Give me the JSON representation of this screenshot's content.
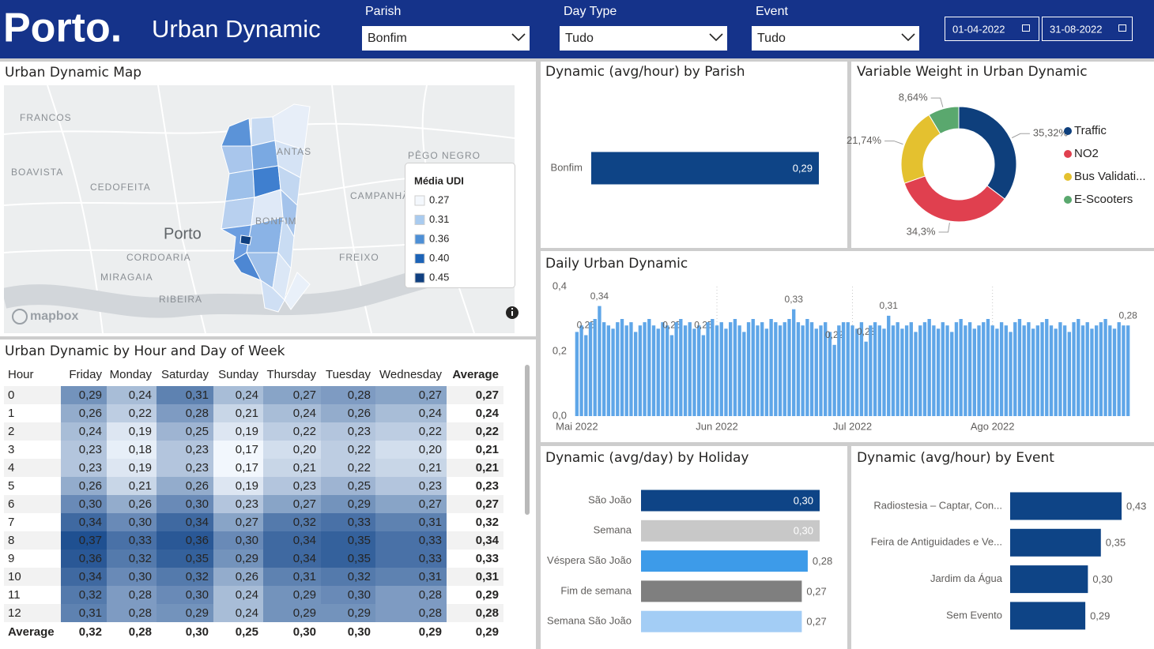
{
  "header": {
    "logo": "Porto.",
    "title": "Urban Dynamic"
  },
  "filters": [
    {
      "label": "Parish",
      "value": "Bonfim"
    },
    {
      "label": "Day Type",
      "value": "Tudo"
    },
    {
      "label": "Event",
      "value": "Tudo"
    }
  ],
  "date_range": {
    "start": "01-04-2022",
    "end": "31-08-2022"
  },
  "map": {
    "title": "Urban Dynamic Map",
    "places": [
      "FRANCOS",
      "BOAVISTA",
      "CEDOFEITA",
      "Porto",
      "CORDOARIA",
      "MIRAGAIA",
      "RIBEIRA",
      "ANTAS",
      "BONFIM",
      "PÊGO NEGRO",
      "CAMPANHÃ",
      "FREIXO"
    ],
    "legend_title": "Média UDI",
    "legend_items": [
      "0.27",
      "0.31",
      "0.36",
      "0.40",
      "0.45"
    ],
    "legend_colors": [
      "#f4f8fd",
      "#a9cbef",
      "#4d8fd6",
      "#1c63b7",
      "#0f3f80"
    ],
    "attribution": "mapbox"
  },
  "chart_data": [
    {
      "type": "bar",
      "orientation": "horizontal",
      "title": "Dynamic (avg/hour) by Parish",
      "categories": [
        "Bonfim"
      ],
      "values": [
        0.29
      ],
      "value_labels": [
        "0,29"
      ],
      "color": "#0e4486"
    },
    {
      "type": "donut",
      "title": "Variable Weight in Urban Dynamic",
      "categories": [
        "Traffic",
        "NO2",
        "Bus Validati...",
        "E-Scooters"
      ],
      "values": [
        35.32,
        34.3,
        21.74,
        8.64
      ],
      "value_labels": [
        "35,32%",
        "34,3%",
        "21,74%",
        "8,64%"
      ],
      "colors": [
        "#0e3f7c",
        "#e0404f",
        "#e4c12f",
        "#5aa86e"
      ]
    },
    {
      "type": "bar",
      "orientation": "vertical",
      "title": "Daily Urban Dynamic",
      "categories": [
        "Mai 2022",
        null,
        null,
        null,
        null,
        null,
        null,
        null,
        null,
        null,
        null,
        null,
        null,
        null,
        null,
        null,
        null,
        null,
        null,
        null,
        null,
        null,
        null,
        null,
        null,
        null,
        null,
        null,
        null,
        null,
        null,
        "Jun 2022",
        null,
        null,
        null,
        null,
        null,
        null,
        null,
        null,
        null,
        null,
        null,
        null,
        null,
        null,
        null,
        null,
        null,
        null,
        null,
        null,
        null,
        null,
        null,
        null,
        null,
        null,
        null,
        null,
        null,
        "Jul 2022",
        null,
        null,
        null,
        null,
        null,
        null,
        null,
        null,
        null,
        null,
        null,
        null,
        null,
        null,
        null,
        null,
        null,
        null,
        null,
        null,
        null,
        null,
        null,
        null,
        null,
        null,
        null,
        null,
        null,
        null,
        "Ago 2022",
        null,
        null,
        null,
        null,
        null,
        null,
        null,
        null,
        null,
        null,
        null,
        null,
        null,
        null,
        null,
        null,
        null,
        null,
        null,
        null,
        null,
        null,
        null,
        null,
        null,
        null,
        null,
        null,
        null,
        null
      ],
      "values": [
        0.26,
        0.28,
        0.25,
        0.29,
        0.3,
        0.34,
        0.29,
        0.28,
        0.27,
        0.29,
        0.3,
        0.28,
        0.29,
        0.26,
        0.28,
        0.29,
        0.3,
        0.28,
        0.27,
        0.29,
        0.28,
        0.25,
        0.29,
        0.3,
        0.28,
        0.29,
        0.27,
        0.28,
        0.25,
        0.29,
        0.3,
        0.28,
        0.29,
        0.27,
        0.29,
        0.3,
        0.28,
        0.26,
        0.29,
        0.3,
        0.28,
        0.29,
        0.27,
        0.3,
        0.29,
        0.28,
        0.29,
        0.3,
        0.33,
        0.29,
        0.28,
        0.3,
        0.29,
        0.27,
        0.28,
        0.29,
        0.26,
        0.22,
        0.28,
        0.29,
        0.29,
        0.28,
        0.27,
        0.29,
        0.23,
        0.28,
        0.29,
        0.28,
        0.27,
        0.31,
        0.28,
        0.29,
        0.27,
        0.28,
        0.29,
        0.26,
        0.28,
        0.29,
        0.3,
        0.28,
        0.27,
        0.29,
        0.28,
        0.26,
        0.29,
        0.3,
        0.28,
        0.29,
        0.27,
        0.28,
        0.29,
        0.3,
        0.28,
        0.27,
        0.29,
        0.28,
        0.26,
        0.29,
        0.3,
        0.28,
        0.29,
        0.27,
        0.28,
        0.29,
        0.3,
        0.28,
        0.27,
        0.29,
        0.28,
        0.26,
        0.29,
        0.3,
        0.28,
        0.29,
        0.27,
        0.28,
        0.29,
        0.3,
        0.28,
        0.27,
        0.29,
        0.28,
        0.28
      ],
      "value_labels": [
        null,
        null,
        "0,25",
        null,
        null,
        "0,34",
        null,
        null,
        null,
        null,
        null,
        null,
        null,
        null,
        null,
        null,
        null,
        null,
        null,
        null,
        null,
        "0,25",
        null,
        null,
        null,
        null,
        null,
        null,
        "0,25",
        null,
        null,
        null,
        null,
        null,
        null,
        null,
        null,
        null,
        null,
        null,
        null,
        null,
        null,
        null,
        null,
        null,
        null,
        null,
        "0,33",
        null,
        null,
        null,
        null,
        null,
        null,
        null,
        null,
        "0,22",
        null,
        null,
        null,
        null,
        null,
        null,
        "0,23",
        null,
        null,
        null,
        null,
        "0,31",
        null,
        null,
        null,
        null,
        null,
        null,
        null,
        null,
        null,
        null,
        null,
        null,
        null,
        null,
        null,
        null,
        null,
        null,
        null,
        null,
        null,
        null,
        null,
        null,
        null,
        null,
        null,
        null,
        null,
        null,
        null,
        null,
        null,
        null,
        null,
        null,
        null,
        null,
        null,
        null,
        null,
        null,
        null,
        null,
        null,
        null,
        null,
        null,
        null,
        null,
        null,
        null,
        "0,28"
      ],
      "color": "#5fa6e8",
      "ylim": [
        0,
        0.4
      ],
      "yticks": [
        {
          "value": 0,
          "label": "0,0"
        },
        {
          "value": 0.2,
          "label": "0,2"
        },
        {
          "value": 0.4,
          "label": "0,4"
        }
      ]
    },
    {
      "type": "bar",
      "orientation": "horizontal",
      "title": "Dynamic (avg/day) by Holiday",
      "categories": [
        "São João",
        "Semana",
        "Véspera São João",
        "Fim de semana",
        "Semana São João"
      ],
      "values": [
        0.3,
        0.3,
        0.28,
        0.27,
        0.27
      ],
      "value_labels": [
        "0,30",
        "0,30",
        "0,28",
        "0,27",
        "0,27"
      ],
      "colors": [
        "#0e4486",
        "#c8c8c8",
        "#3d9be9",
        "#7f7f7f",
        "#a3cdf5"
      ]
    },
    {
      "type": "bar",
      "orientation": "horizontal",
      "title": "Dynamic (avg/hour) by Event",
      "categories": [
        "Radiostesia – Captar, Con...",
        "Feira de Antiguidades e Ve...",
        "Jardim da Água",
        "Sem Evento"
      ],
      "values": [
        0.43,
        0.35,
        0.3,
        0.29
      ],
      "value_labels": [
        "0,43",
        "0,35",
        "0,30",
        "0,29"
      ],
      "color": "#0e4486"
    }
  ],
  "table": {
    "title": "Urban Dynamic by Hour and Day of Week",
    "columns": [
      "Hour",
      "Friday",
      "Monday",
      "Saturday",
      "Sunday",
      "Thursday",
      "Tuesday",
      "Wednesday",
      "Average"
    ],
    "rows": [
      [
        "0",
        "0,29",
        "0,24",
        "0,31",
        "0,24",
        "0,27",
        "0,28",
        "0,27",
        "0,27"
      ],
      [
        "1",
        "0,26",
        "0,22",
        "0,28",
        "0,21",
        "0,24",
        "0,26",
        "0,24",
        "0,24"
      ],
      [
        "2",
        "0,24",
        "0,19",
        "0,25",
        "0,19",
        "0,22",
        "0,23",
        "0,22",
        "0,22"
      ],
      [
        "3",
        "0,23",
        "0,18",
        "0,23",
        "0,17",
        "0,20",
        "0,22",
        "0,20",
        "0,21"
      ],
      [
        "4",
        "0,23",
        "0,19",
        "0,23",
        "0,17",
        "0,21",
        "0,22",
        "0,21",
        "0,21"
      ],
      [
        "5",
        "0,26",
        "0,21",
        "0,26",
        "0,19",
        "0,23",
        "0,25",
        "0,23",
        "0,23"
      ],
      [
        "6",
        "0,30",
        "0,26",
        "0,30",
        "0,23",
        "0,27",
        "0,29",
        "0,27",
        "0,27"
      ],
      [
        "7",
        "0,34",
        "0,30",
        "0,34",
        "0,27",
        "0,32",
        "0,33",
        "0,31",
        "0,32"
      ],
      [
        "8",
        "0,37",
        "0,33",
        "0,36",
        "0,30",
        "0,34",
        "0,35",
        "0,33",
        "0,34"
      ],
      [
        "9",
        "0,36",
        "0,32",
        "0,35",
        "0,29",
        "0,34",
        "0,35",
        "0,33",
        "0,33"
      ],
      [
        "10",
        "0,34",
        "0,30",
        "0,32",
        "0,26",
        "0,31",
        "0,32",
        "0,31",
        "0,31"
      ],
      [
        "11",
        "0,32",
        "0,28",
        "0,30",
        "0,24",
        "0,29",
        "0,30",
        "0,28",
        "0,29"
      ],
      [
        "12",
        "0,31",
        "0,28",
        "0,29",
        "0,24",
        "0,29",
        "0,29",
        "0,28",
        "0,28"
      ],
      [
        "Average",
        "0,32",
        "0,28",
        "0,30",
        "0,25",
        "0,30",
        "0,30",
        "0,29",
        "0,29"
      ]
    ]
  }
}
